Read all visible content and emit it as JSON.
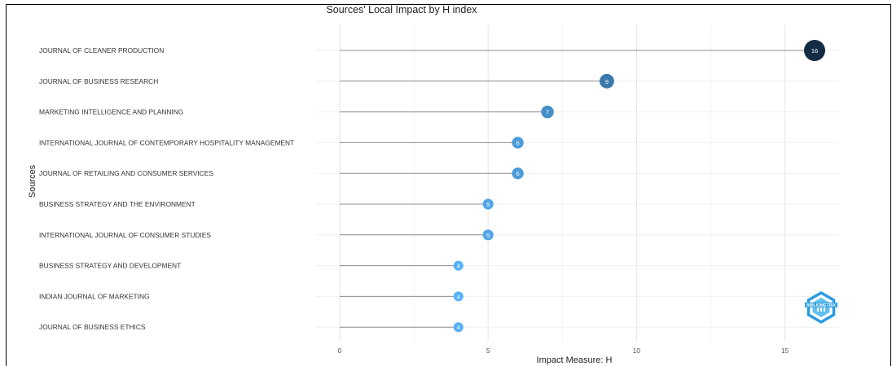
{
  "chart_data": {
    "type": "lollipop",
    "title": "Sources' Local Impact by H index",
    "xlabel": "Impact Measure: H",
    "ylabel": "Sources",
    "xlim": [
      0,
      16.5
    ],
    "xticks": [
      0,
      5,
      10,
      15
    ],
    "grid": true,
    "categories": [
      "JOURNAL OF CLEANER PRODUCTION",
      "JOURNAL OF BUSINESS RESEARCH",
      "MARKETING INTELLIGENCE AND PLANNING",
      "INTERNATIONAL JOURNAL OF CONTEMPORARY HOSPITALITY MANAGEMENT",
      "JOURNAL OF RETAILING AND CONSUMER SERVICES",
      "BUSINESS STRATEGY AND THE ENVIRONMENT",
      "INTERNATIONAL JOURNAL OF CONSUMER STUDIES",
      "BUSINESS STRATEGY AND DEVELOPMENT",
      "INDIAN JOURNAL OF MARKETING",
      "JOURNAL OF BUSINESS ETHICS"
    ],
    "values": [
      16,
      9,
      7,
      6,
      6,
      5,
      5,
      4,
      4,
      4
    ],
    "color_low": "#56b1f7",
    "color_high": "#132b43"
  },
  "logo": {
    "text": "BIBLIOMETRIX",
    "color": "#2b9be0"
  }
}
